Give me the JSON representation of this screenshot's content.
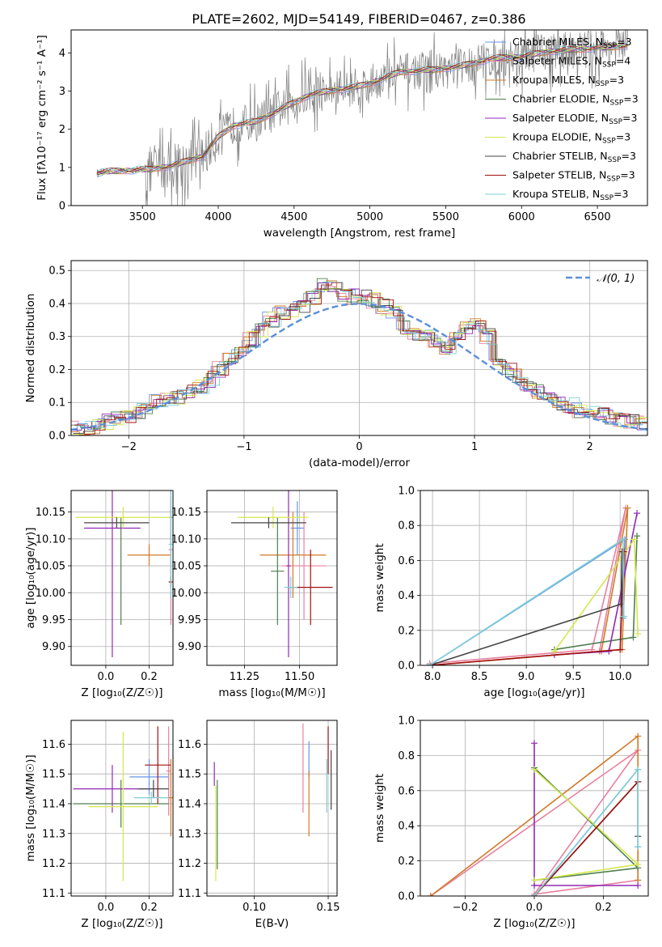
{
  "figure_title": "PLATE=2602, MJD=54149, FIBERID=0467, z=0.386",
  "colors": {
    "chabrier_miles": "#6495ed",
    "salpeter_miles": "#e8809e",
    "kroupa_miles": "#d27a28",
    "chabrier_elodie": "#4f7f4f",
    "salpeter_elodie": "#9228b4",
    "kroupa_elodie": "#d4e84c",
    "chabrier_stelib": "#444444",
    "salpeter_stelib": "#a01010",
    "kroupa_stelib": "#7ecfd6",
    "observed": "#808080",
    "normal_curve": "#5b8fd9"
  },
  "chart_data": [
    {
      "id": "spectrum",
      "type": "line",
      "xlabel": "wavelength [Angstrom, rest frame]",
      "ylabel": "Flux [fλ10⁻¹⁷ erg cm⁻² s⁻¹ A⁻¹]",
      "xlim": [
        3030,
        6830
      ],
      "ylim": [
        0,
        4.6
      ],
      "xticks": [
        3500,
        4000,
        4500,
        5000,
        5500,
        6000,
        6500
      ],
      "yticks": [
        0,
        1,
        2,
        3,
        4
      ],
      "legend_position": "top-right",
      "legend": [
        {
          "key": "chabrier_miles",
          "label": "Chabrier MILES, N",
          "sub": "SSP",
          "value": "=3"
        },
        {
          "key": "salpeter_miles",
          "label": "Salpeter MILES, N",
          "sub": "SSP",
          "value": "=4"
        },
        {
          "key": "kroupa_miles",
          "label": "Kroupa MILES, N",
          "sub": "SSP",
          "value": "=3"
        },
        {
          "key": "chabrier_elodie",
          "label": "Chabrier ELODIE, N",
          "sub": "SSP",
          "value": "=3"
        },
        {
          "key": "salpeter_elodie",
          "label": "Salpeter ELODIE, N",
          "sub": "SSP",
          "value": "=3"
        },
        {
          "key": "kroupa_elodie",
          "label": "Kroupa ELODIE, N",
          "sub": "SSP",
          "value": "=3"
        },
        {
          "key": "chabrier_stelib",
          "label": "Chabrier STELIB, N",
          "sub": "SSP",
          "value": "=3"
        },
        {
          "key": "salpeter_stelib",
          "label": "Salpeter STELIB, N",
          "sub": "SSP",
          "value": "=3"
        },
        {
          "key": "kroupa_stelib",
          "label": "Kroupa STELIB, N",
          "sub": "SSP",
          "value": "=3"
        }
      ],
      "continuum": [
        [
          3200,
          0.85
        ],
        [
          3300,
          0.9
        ],
        [
          3400,
          0.92
        ],
        [
          3550,
          0.95
        ],
        [
          3700,
          1.05
        ],
        [
          3900,
          1.3
        ],
        [
          4000,
          1.8
        ],
        [
          4100,
          2.1
        ],
        [
          4250,
          2.2
        ],
        [
          4400,
          2.5
        ],
        [
          4600,
          2.9
        ],
        [
          4800,
          3.05
        ],
        [
          4900,
          3.1
        ],
        [
          5000,
          3.2
        ],
        [
          5200,
          3.5
        ],
        [
          5400,
          3.55
        ],
        [
          5600,
          3.65
        ],
        [
          5800,
          3.85
        ],
        [
          6000,
          3.9
        ],
        [
          6200,
          4.05
        ],
        [
          6400,
          4.1
        ],
        [
          6600,
          4.15
        ],
        [
          6700,
          4.2
        ]
      ]
    },
    {
      "id": "residuals",
      "type": "line",
      "xlabel": "(data-model)/error",
      "ylabel": "Normed distribution",
      "xlim": [
        -2.5,
        2.5
      ],
      "ylim": [
        0,
        0.53
      ],
      "xticks": [
        -2,
        -1,
        0,
        1,
        2
      ],
      "yticks": [
        0,
        0.1,
        0.2,
        0.3,
        0.4,
        0.5
      ],
      "legend_position": "top-right",
      "normal_label": "𝒩(0, 1)",
      "hist_envelope": [
        0.02,
        0.025,
        0.03,
        0.04,
        0.05,
        0.06,
        0.075,
        0.09,
        0.1,
        0.11,
        0.12,
        0.135,
        0.15,
        0.17,
        0.2,
        0.23,
        0.26,
        0.29,
        0.32,
        0.35,
        0.37,
        0.38,
        0.39,
        0.42,
        0.46,
        0.45,
        0.43,
        0.42,
        0.42,
        0.41,
        0.39,
        0.37,
        0.33,
        0.31,
        0.3,
        0.28,
        0.27,
        0.29,
        0.32,
        0.33,
        0.3,
        0.22,
        0.2,
        0.18,
        0.15,
        0.13,
        0.12,
        0.1,
        0.09,
        0.075,
        0.07,
        0.06,
        0.055,
        0.045,
        0.04,
        0.035
      ]
    },
    {
      "id": "age-vs-z",
      "type": "scatter",
      "xlabel": "Z [log₁₀(Z/Z☉)]",
      "ylabel": "age  [log₁₀(age/yr)]",
      "xlim": [
        -0.16,
        0.31
      ],
      "ylim": [
        9.865,
        10.19
      ],
      "xticks": [
        0.0,
        0.2
      ],
      "yticks": [
        9.9,
        9.95,
        10.0,
        10.05,
        10.1,
        10.15
      ],
      "points": [
        {
          "key": "chabrier_miles",
          "x": 0.3,
          "y": 10.14,
          "xerr": 0.01,
          "yerr": 0.04
        },
        {
          "key": "salpeter_miles",
          "x": 0.3,
          "y": 10.08,
          "xerr": 0.01,
          "yerr": 0.14
        },
        {
          "key": "kroupa_miles",
          "x": 0.2,
          "y": 10.07,
          "xerr": 0.1,
          "yerr": 0.02
        },
        {
          "key": "chabrier_elodie",
          "x": 0.07,
          "y": 10.04,
          "xerr": 0.0,
          "yerr": 0.1
        },
        {
          "key": "salpeter_elodie",
          "x": 0.03,
          "y": 10.12,
          "xerr": 0.13,
          "yerr": 0.24
        },
        {
          "key": "kroupa_elodie",
          "x": 0.08,
          "y": 10.14,
          "xerr": 0.22,
          "yerr": 0.02
        },
        {
          "key": "chabrier_stelib",
          "x": 0.05,
          "y": 10.13,
          "xerr": 0.15,
          "yerr": 0.01
        },
        {
          "key": "salpeter_stelib",
          "x": 0.3,
          "y": 10.02,
          "xerr": 0.01,
          "yerr": 0.01
        },
        {
          "key": "kroupa_stelib",
          "x": 0.3,
          "y": 10.09,
          "xerr": 0.01,
          "yerr": 0.1
        }
      ]
    },
    {
      "id": "age-vs-mass",
      "type": "scatter",
      "xlabel": "mass [log₁₀(M/M☉)]",
      "ylabel": "",
      "xlim": [
        11.08,
        11.67
      ],
      "ylim": [
        9.865,
        10.19
      ],
      "xticks": [
        11.25,
        11.5
      ],
      "yticks": [
        9.9,
        9.95,
        10.0,
        10.05,
        10.1,
        10.15
      ],
      "points": [
        {
          "key": "chabrier_miles",
          "x": 11.49,
          "y": 10.12,
          "xerr": 0.03,
          "yerr": 0.05
        },
        {
          "key": "salpeter_miles",
          "x": 11.52,
          "y": 10.05,
          "xerr": 0.1,
          "yerr": 0.1
        },
        {
          "key": "kroupa_miles",
          "x": 11.47,
          "y": 10.07,
          "xerr": 0.15,
          "yerr": 0.08
        },
        {
          "key": "chabrier_elodie",
          "x": 11.4,
          "y": 10.04,
          "xerr": 0.03,
          "yerr": 0.1
        },
        {
          "key": "salpeter_elodie",
          "x": 11.45,
          "y": 10.05,
          "xerr": 0.01,
          "yerr": 0.17
        },
        {
          "key": "kroupa_elodie",
          "x": 11.38,
          "y": 10.14,
          "xerr": 0.16,
          "yerr": 0.02
        },
        {
          "key": "chabrier_stelib",
          "x": 11.36,
          "y": 10.13,
          "xerr": 0.17,
          "yerr": 0.01
        },
        {
          "key": "salpeter_stelib",
          "x": 11.55,
          "y": 10.01,
          "xerr": 0.1,
          "yerr": 0.07
        },
        {
          "key": "kroupa_stelib",
          "x": 11.46,
          "y": 10.01,
          "xerr": 0.03,
          "yerr": 0.02
        }
      ]
    },
    {
      "id": "weight-vs-age",
      "type": "line",
      "xlabel": "age  [log₁₀(age/yr)]",
      "ylabel": "mass weight",
      "xlim": [
        7.87,
        10.3
      ],
      "ylim": [
        0,
        1.0
      ],
      "xticks": [
        8.0,
        8.5,
        9.0,
        9.5,
        10.0
      ],
      "yticks": [
        0.0,
        0.2,
        0.4,
        0.6,
        0.8,
        1.0
      ],
      "series": [
        {
          "key": "chabrier_miles",
          "points": [
            [
              7.97,
              0.0
            ],
            [
              10.05,
              0.72
            ],
            [
              10.03,
              0.27
            ]
          ]
        },
        {
          "key": "salpeter_miles",
          "points": [
            [
              7.97,
              0.01
            ],
            [
              9.7,
              0.09
            ],
            [
              10.06,
              0.9
            ],
            [
              9.78,
              0.08
            ]
          ]
        },
        {
          "key": "kroupa_miles",
          "points": [
            [
              7.97,
              0.0
            ],
            [
              10.02,
              0.09
            ],
            [
              10.08,
              0.9
            ],
            [
              9.8,
              0.08
            ]
          ]
        },
        {
          "key": "chabrier_elodie",
          "points": [
            [
              9.3,
              0.09
            ],
            [
              10.14,
              0.16
            ],
            [
              10.18,
              0.74
            ]
          ]
        },
        {
          "key": "salpeter_elodie",
          "points": [
            [
              9.3,
              0.06
            ],
            [
              9.88,
              0.08
            ],
            [
              10.18,
              0.87
            ]
          ]
        },
        {
          "key": "kroupa_elodie",
          "points": [
            [
              9.3,
              0.08
            ],
            [
              10.15,
              0.72
            ],
            [
              10.19,
              0.18
            ]
          ]
        },
        {
          "key": "chabrier_stelib",
          "points": [
            [
              7.97,
              0.0
            ],
            [
              10.01,
              0.35
            ],
            [
              10.02,
              0.65
            ]
          ]
        },
        {
          "key": "salpeter_stelib",
          "points": [
            [
              7.97,
              0.0
            ],
            [
              10.0,
              0.09
            ],
            [
              10.04,
              0.65
            ]
          ]
        },
        {
          "key": "kroupa_stelib",
          "points": [
            [
              7.97,
              0.0
            ],
            [
              10.03,
              0.72
            ],
            [
              10.04,
              0.28
            ]
          ]
        }
      ]
    },
    {
      "id": "mass-vs-z",
      "type": "scatter",
      "xlabel": "Z [log₁₀(Z/Z☉)]",
      "ylabel": "mass [log₁₀(M/M☉)]",
      "xlim": [
        -0.16,
        0.31
      ],
      "ylim": [
        11.09,
        11.68
      ],
      "xticks": [
        0.0,
        0.2
      ],
      "yticks": [
        11.1,
        11.2,
        11.3,
        11.4,
        11.5,
        11.6
      ],
      "points": [
        {
          "key": "chabrier_miles",
          "x": 0.2,
          "y": 11.49,
          "xerr": 0.09,
          "yerr": 0.06
        },
        {
          "key": "salpeter_miles",
          "x": 0.29,
          "y": 11.51,
          "xerr": 0.01,
          "yerr": 0.15
        },
        {
          "key": "kroupa_miles",
          "x": 0.3,
          "y": 11.42,
          "xerr": 0.01,
          "yerr": 0.13
        },
        {
          "key": "chabrier_elodie",
          "x": 0.07,
          "y": 11.4,
          "xerr": 0.22,
          "yerr": 0.08
        },
        {
          "key": "salpeter_elodie",
          "x": 0.03,
          "y": 11.45,
          "xerr": 0.18,
          "yerr": 0.08
        },
        {
          "key": "kroupa_elodie",
          "x": 0.08,
          "y": 11.39,
          "xerr": 0.16,
          "yerr": 0.25
        },
        {
          "key": "chabrier_stelib",
          "x": 0.22,
          "y": 11.45,
          "xerr": 0.07,
          "yerr": 0.03
        },
        {
          "key": "salpeter_stelib",
          "x": 0.24,
          "y": 11.53,
          "xerr": 0.06,
          "yerr": 0.13
        },
        {
          "key": "kroupa_stelib",
          "x": 0.21,
          "y": 11.42,
          "xerr": 0.08,
          "yerr": 0.02
        }
      ]
    },
    {
      "id": "mass-vs-ebv",
      "type": "scatter",
      "xlabel": "E(B-V)",
      "ylabel": "",
      "xlim": [
        0.068,
        0.156
      ],
      "ylim": [
        11.09,
        11.68
      ],
      "xticks": [
        0.1,
        0.15
      ],
      "yticks": [
        11.1,
        11.2,
        11.3,
        11.4,
        11.5,
        11.6
      ],
      "points": [
        {
          "key": "chabrier_miles",
          "x": 0.137,
          "y": 11.55,
          "xerr": 0.0,
          "yerr": 0.06
        },
        {
          "key": "salpeter_miles",
          "x": 0.133,
          "y": 11.52,
          "xerr": 0.0,
          "yerr": 0.15
        },
        {
          "key": "kroupa_miles",
          "x": 0.137,
          "y": 11.4,
          "xerr": 0.0,
          "yerr": 0.11
        },
        {
          "key": "chabrier_elodie",
          "x": 0.075,
          "y": 11.33,
          "xerr": 0.0,
          "yerr": 0.15
        },
        {
          "key": "salpeter_elodie",
          "x": 0.073,
          "y": 11.5,
          "xerr": 0.0,
          "yerr": 0.04
        },
        {
          "key": "kroupa_elodie",
          "x": 0.074,
          "y": 11.3,
          "xerr": 0.0,
          "yerr": 0.16
        },
        {
          "key": "chabrier_stelib",
          "x": 0.152,
          "y": 11.48,
          "xerr": 0.0,
          "yerr": 0.1
        },
        {
          "key": "salpeter_stelib",
          "x": 0.15,
          "y": 11.58,
          "xerr": 0.0,
          "yerr": 0.08
        },
        {
          "key": "kroupa_stelib",
          "x": 0.149,
          "y": 11.46,
          "xerr": 0.0,
          "yerr": 0.09
        }
      ]
    },
    {
      "id": "weight-vs-z",
      "type": "line",
      "xlabel": "Z [log₁₀(Z/Z☉)]",
      "ylabel": "mass weight",
      "xlim": [
        -0.33,
        0.33
      ],
      "ylim": [
        0,
        1.0
      ],
      "xticks": [
        -0.2,
        0.0,
        0.2
      ],
      "yticks": [
        0.0,
        0.2,
        0.4,
        0.6,
        0.8,
        1.0
      ],
      "series": [
        {
          "key": "chabrier_miles",
          "points": [
            [
              0.0,
              0.0
            ],
            [
              0.3,
              0.72
            ],
            [
              0.3,
              0.28
            ]
          ]
        },
        {
          "key": "salpeter_miles",
          "points": [
            [
              -0.3,
              0.0
            ],
            [
              0.3,
              0.83
            ],
            [
              0.0,
              0.01
            ],
            [
              0.3,
              0.09
            ]
          ]
        },
        {
          "key": "kroupa_miles",
          "points": [
            [
              -0.3,
              0.0
            ],
            [
              0.3,
              0.91
            ],
            [
              0.3,
              0.09
            ]
          ]
        },
        {
          "key": "chabrier_elodie",
          "points": [
            [
              0.0,
              0.73
            ],
            [
              0.3,
              0.16
            ],
            [
              0.0,
              0.09
            ]
          ]
        },
        {
          "key": "salpeter_elodie",
          "points": [
            [
              0.0,
              0.87
            ],
            [
              0.0,
              0.06
            ],
            [
              0.3,
              0.06
            ]
          ]
        },
        {
          "key": "kroupa_elodie",
          "points": [
            [
              0.0,
              0.72
            ],
            [
              0.3,
              0.18
            ],
            [
              0.0,
              0.09
            ]
          ]
        },
        {
          "key": "chabrier_stelib",
          "points": [
            [
              0.0,
              0.0
            ],
            [
              0.3,
              0.65
            ],
            [
              0.3,
              0.34
            ]
          ]
        },
        {
          "key": "salpeter_stelib",
          "points": [
            [
              0.0,
              0.0
            ],
            [
              0.3,
              0.65
            ]
          ]
        },
        {
          "key": "kroupa_stelib",
          "points": [
            [
              0.0,
              0.0
            ],
            [
              0.3,
              0.72
            ],
            [
              0.3,
              0.28
            ]
          ]
        }
      ]
    }
  ]
}
